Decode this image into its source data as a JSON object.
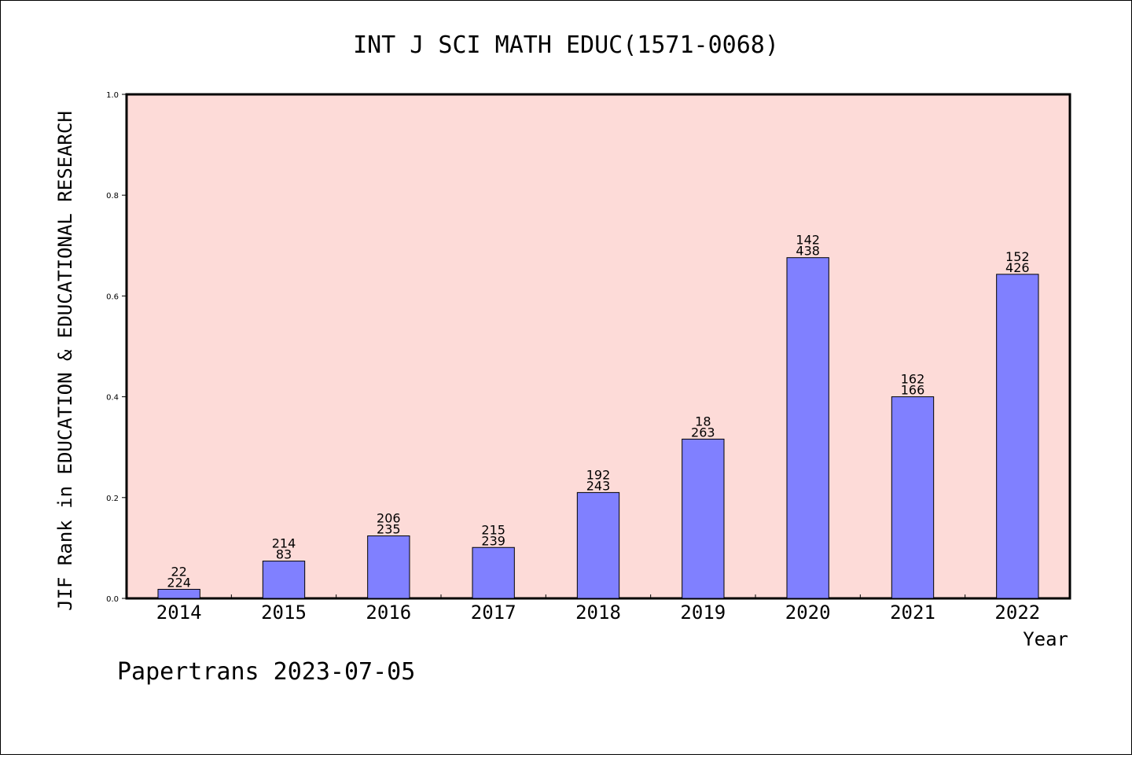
{
  "chart_data": {
    "type": "bar",
    "title": "INT J SCI MATH EDUC(1571-0068)",
    "xlabel": "Year",
    "ylabel": "JIF Rank in EDUCATION & EDUCATIONAL RESEARCH",
    "ylim": [
      0,
      1.0
    ],
    "yticks": [
      "0.0",
      "0.2",
      "0.4",
      "0.6",
      "0.8",
      "1.0"
    ],
    "categories": [
      "2014",
      "2015",
      "2016",
      "2017",
      "2018",
      "2019",
      "2020",
      "2021",
      "2022"
    ],
    "values": [
      0.018,
      0.074,
      0.124,
      0.101,
      0.21,
      0.316,
      0.676,
      0.4,
      0.643
    ],
    "label_top": [
      "22",
      "214",
      "206",
      "215",
      "192",
      "18",
      "142",
      "162",
      "152"
    ],
    "label_bottom": [
      "224",
      "83",
      "235",
      "239",
      "243",
      "263",
      "438",
      "166",
      "426"
    ],
    "grid": false,
    "colors": {
      "plot_background": "#fddbd8",
      "bar_fill": "#8080ff",
      "bar_edge": "#000000"
    }
  },
  "footer": "Papertrans 2023-07-05"
}
